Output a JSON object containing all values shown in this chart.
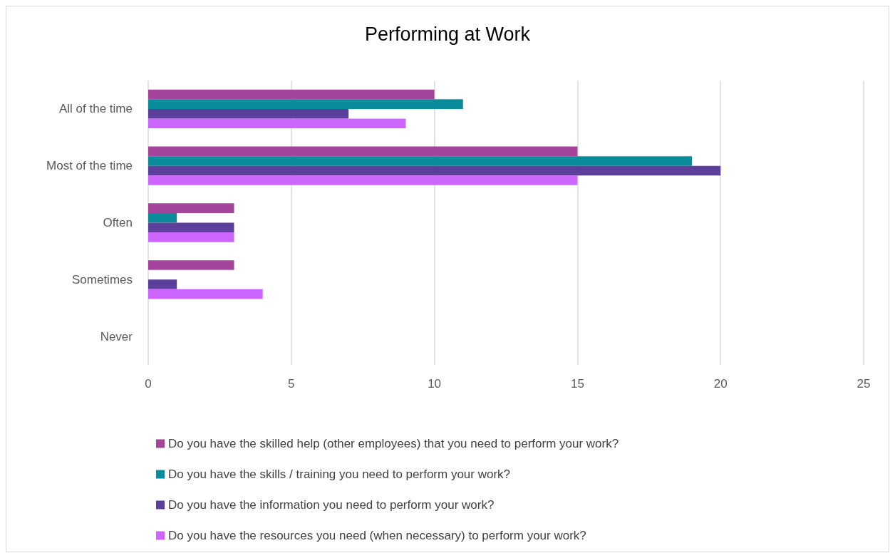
{
  "chart_data": {
    "type": "bar",
    "orientation": "horizontal",
    "title": "Performing at Work",
    "categories": [
      "All of the time",
      "Most of the time",
      "Often",
      "Sometimes",
      "Never"
    ],
    "series": [
      {
        "name": "Do you have the skilled help (other employees) that you need to perform your work?",
        "color": "#a4449a",
        "values": [
          10,
          15,
          3,
          3,
          0
        ]
      },
      {
        "name": "Do you have the skills / training you need to perform your work?",
        "color": "#0b8c9a",
        "values": [
          11,
          19,
          1,
          0,
          0
        ]
      },
      {
        "name": "Do you have the information you need to perform your work?",
        "color": "#5b3f9a",
        "values": [
          7,
          20,
          3,
          1,
          0
        ]
      },
      {
        "name": "Do you have the resources you need (when necessary) to perform your work?",
        "color": "#cc66ff",
        "values": [
          9,
          15,
          3,
          4,
          0
        ]
      }
    ],
    "xlim": [
      0,
      25
    ],
    "xticks": [
      0,
      5,
      10,
      15,
      20,
      25
    ],
    "grid": "x",
    "legend": "bottom"
  }
}
